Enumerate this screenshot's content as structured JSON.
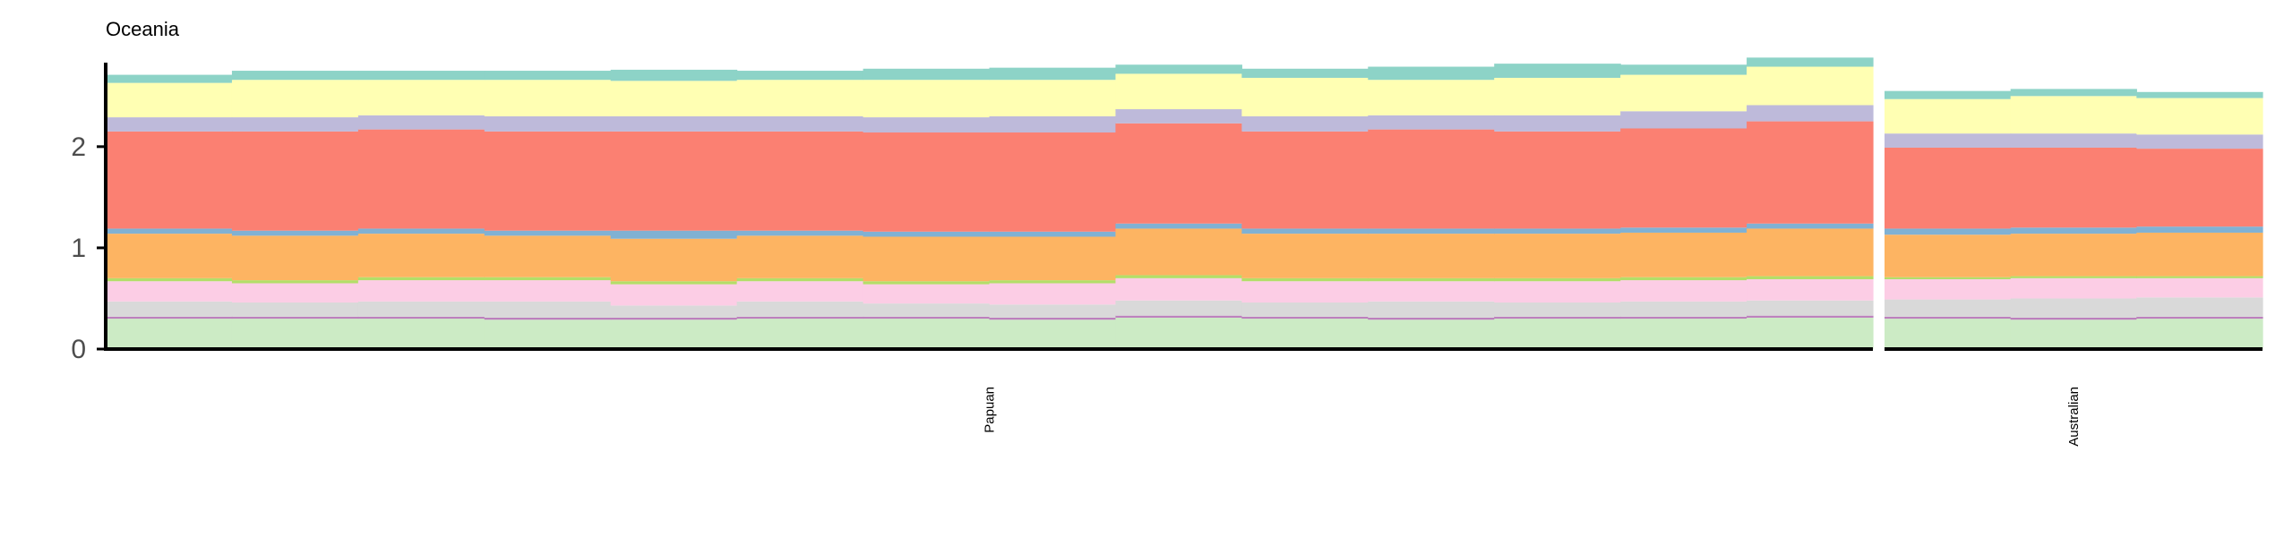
{
  "chart_data": {
    "type": "area",
    "title": "Oceania",
    "xlabel": "",
    "ylabel": "",
    "ylim": [
      0,
      2.83
    ],
    "yticks": [
      0,
      1,
      2
    ],
    "grid": false,
    "legend": "none",
    "colors": [
      "#ccebc5",
      "#bc80bd",
      "#d9d9d9",
      "#fccde5",
      "#b3de69",
      "#fdb462",
      "#80b1d3",
      "#fb8072",
      "#bebada",
      "#ffffb3",
      "#8dd3c7"
    ],
    "groups": [
      {
        "name": "Papuan",
        "series": [
          {
            "values": [
              0.3,
              0.3,
              0.3,
              0.29,
              0.29,
              0.3,
              0.3,
              0.29,
              0.31,
              0.3,
              0.29,
              0.3,
              0.3,
              0.31
            ]
          },
          {
            "values": [
              0.02,
              0.02,
              0.02,
              0.02,
              0.02,
              0.02,
              0.02,
              0.02,
              0.02,
              0.02,
              0.02,
              0.02,
              0.02,
              0.02
            ]
          },
          {
            "values": [
              0.15,
              0.14,
              0.15,
              0.16,
              0.12,
              0.15,
              0.13,
              0.13,
              0.15,
              0.14,
              0.16,
              0.14,
              0.15,
              0.15
            ]
          },
          {
            "values": [
              0.2,
              0.19,
              0.21,
              0.21,
              0.21,
              0.2,
              0.19,
              0.21,
              0.22,
              0.21,
              0.2,
              0.21,
              0.21,
              0.21
            ]
          },
          {
            "values": [
              0.03,
              0.03,
              0.03,
              0.03,
              0.03,
              0.03,
              0.03,
              0.03,
              0.03,
              0.03,
              0.03,
              0.03,
              0.03,
              0.03
            ]
          },
          {
            "values": [
              0.44,
              0.44,
              0.43,
              0.41,
              0.42,
              0.42,
              0.44,
              0.43,
              0.46,
              0.44,
              0.44,
              0.44,
              0.44,
              0.47
            ]
          },
          {
            "values": [
              0.05,
              0.05,
              0.05,
              0.05,
              0.08,
              0.05,
              0.05,
              0.05,
              0.05,
              0.05,
              0.05,
              0.05,
              0.05,
              0.05
            ]
          },
          {
            "values": [
              0.96,
              0.98,
              0.98,
              0.98,
              0.98,
              0.98,
              0.98,
              0.98,
              0.99,
              0.96,
              0.98,
              0.96,
              0.98,
              1.01
            ]
          },
          {
            "values": [
              0.14,
              0.14,
              0.14,
              0.15,
              0.15,
              0.15,
              0.15,
              0.16,
              0.14,
              0.15,
              0.14,
              0.16,
              0.17,
              0.16
            ]
          },
          {
            "values": [
              0.34,
              0.37,
              0.35,
              0.36,
              0.35,
              0.36,
              0.37,
              0.36,
              0.35,
              0.38,
              0.35,
              0.37,
              0.36,
              0.38
            ]
          },
          {
            "values": [
              0.08,
              0.09,
              0.09,
              0.09,
              0.11,
              0.09,
              0.11,
              0.12,
              0.09,
              0.09,
              0.13,
              0.14,
              0.1,
              0.09
            ]
          }
        ]
      },
      {
        "name": "Australian",
        "series": [
          {
            "values": [
              0.3,
              0.29,
              0.3
            ]
          },
          {
            "values": [
              0.02,
              0.02,
              0.02
            ]
          },
          {
            "values": [
              0.17,
              0.19,
              0.19
            ]
          },
          {
            "values": [
              0.2,
              0.2,
              0.19
            ]
          },
          {
            "values": [
              0.02,
              0.02,
              0.02
            ]
          },
          {
            "values": [
              0.42,
              0.42,
              0.43
            ]
          },
          {
            "values": [
              0.06,
              0.06,
              0.06
            ]
          },
          {
            "values": [
              0.8,
              0.79,
              0.77
            ]
          },
          {
            "values": [
              0.14,
              0.14,
              0.14
            ]
          },
          {
            "values": [
              0.34,
              0.37,
              0.36
            ]
          },
          {
            "values": [
              0.08,
              0.07,
              0.06
            ]
          }
        ]
      }
    ]
  }
}
